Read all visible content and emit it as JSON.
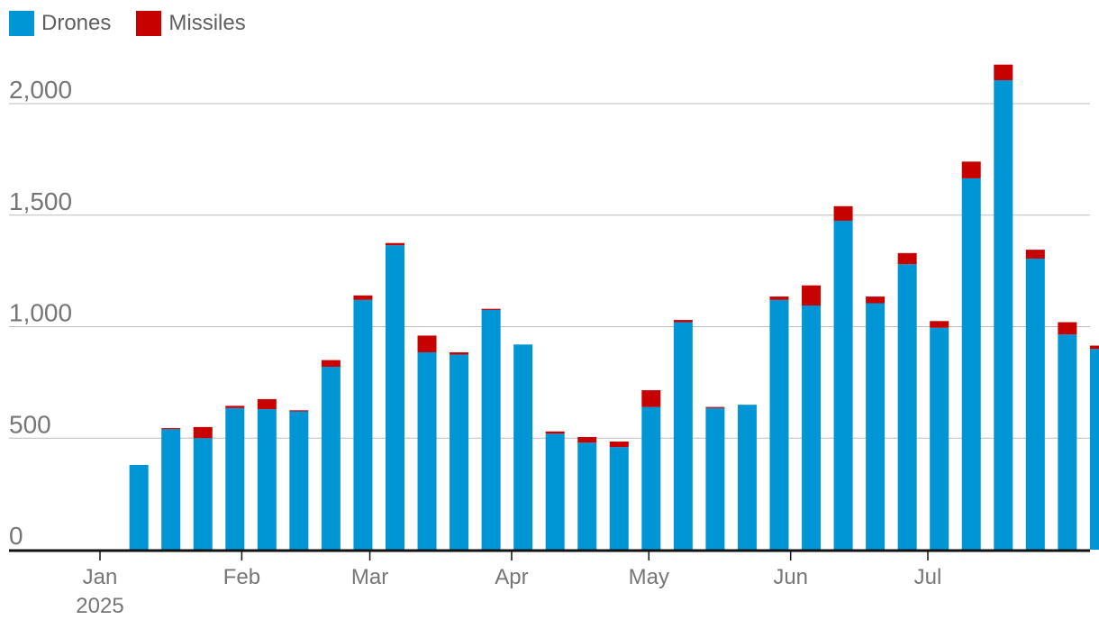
{
  "legend": {
    "drones_label": "Drones",
    "missiles_label": "Missiles"
  },
  "colors": {
    "drones": "#0096d6",
    "missiles": "#c70000",
    "grid": "#bdbdbd",
    "axis": "#121212"
  },
  "chart_data": {
    "type": "bar",
    "stacked": true,
    "x_axis_ticks": [
      "Jan",
      "Feb",
      "Mar",
      "Apr",
      "May",
      "Jun",
      "Jul"
    ],
    "x_axis_year": "2025",
    "y_ticks": [
      0,
      500,
      1000,
      1500,
      2000
    ],
    "y_tick_labels": [
      "0",
      "500",
      "1,000",
      "1,500",
      "2,000"
    ],
    "ylim": [
      0,
      2250
    ],
    "grid": true,
    "legend_position": "top-left",
    "weeks": [
      "2025-01-06",
      "2025-01-13",
      "2025-01-20",
      "2025-01-27",
      "2025-02-03",
      "2025-02-10",
      "2025-02-17",
      "2025-02-24",
      "2025-03-03",
      "2025-03-10",
      "2025-03-17",
      "2025-03-24",
      "2025-03-31",
      "2025-04-07",
      "2025-04-14",
      "2025-04-21",
      "2025-04-28",
      "2025-05-05",
      "2025-05-12",
      "2025-05-19",
      "2025-05-26",
      "2025-06-02",
      "2025-06-09",
      "2025-06-16",
      "2025-06-23",
      "2025-06-30",
      "2025-07-07",
      "2025-07-14",
      "2025-07-21",
      "2025-07-28",
      "2025-08-04"
    ],
    "series": [
      {
        "name": "Drones",
        "values": [
          380,
          540,
          500,
          635,
          630,
          620,
          820,
          1120,
          1365,
          885,
          875,
          1075,
          920,
          520,
          480,
          460,
          640,
          1020,
          635,
          650,
          1120,
          1095,
          1475,
          1105,
          1280,
          995,
          1665,
          2105,
          1305,
          965,
          900
        ]
      },
      {
        "name": "Missiles",
        "values": [
          0,
          5,
          50,
          10,
          45,
          5,
          30,
          20,
          10,
          75,
          10,
          5,
          0,
          10,
          25,
          25,
          75,
          10,
          5,
          0,
          15,
          90,
          65,
          30,
          50,
          30,
          75,
          70,
          40,
          55,
          15
        ]
      }
    ]
  }
}
